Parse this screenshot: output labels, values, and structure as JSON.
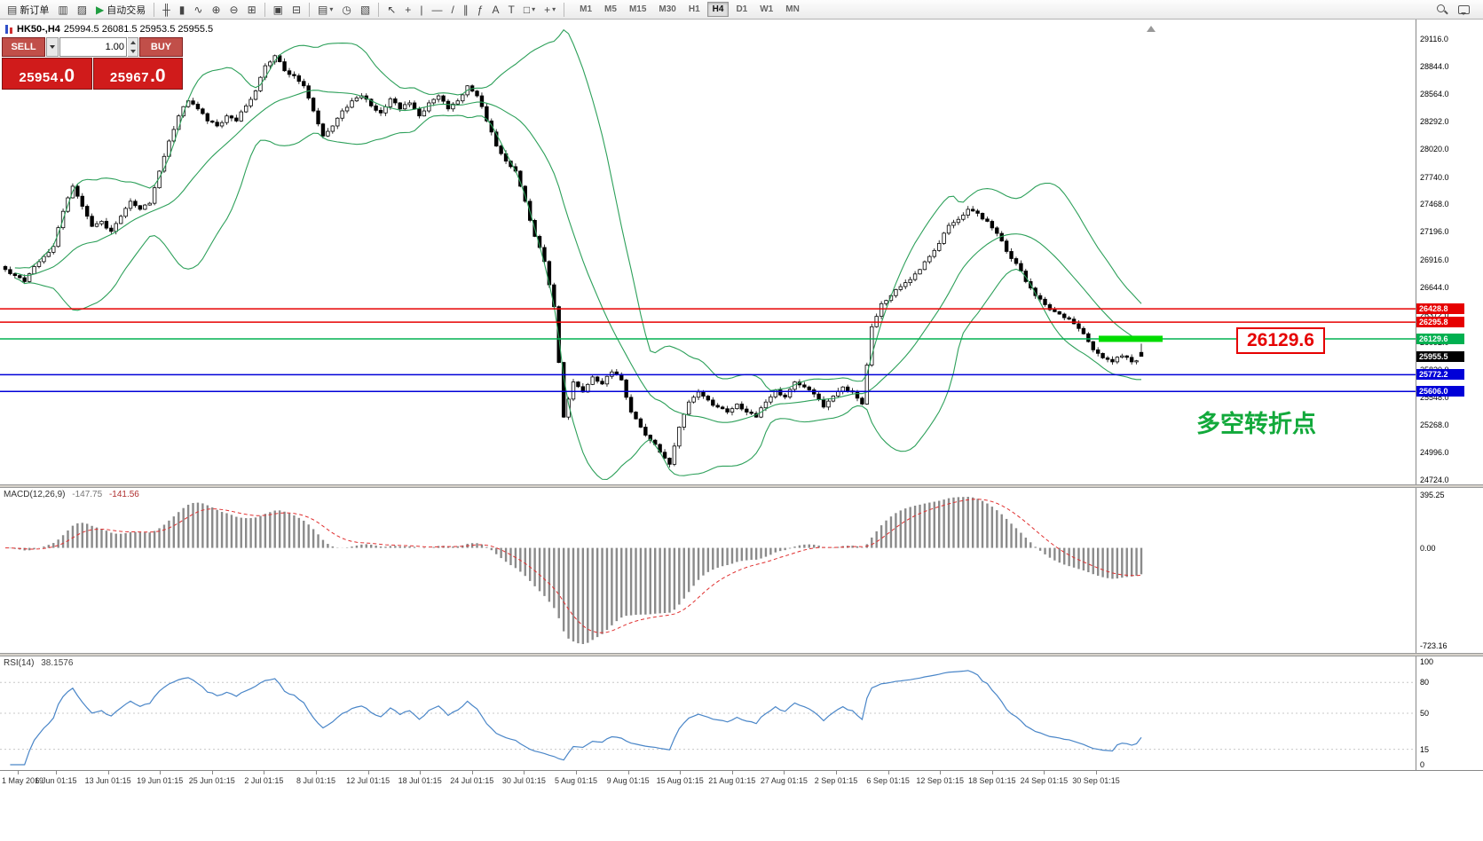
{
  "app": {
    "background": "#ffffff",
    "toolbar_bg": "#f0f0f0"
  },
  "toolbar": {
    "groups": [
      {
        "items": [
          {
            "name": "new-order-button",
            "icon": "▤",
            "label": "新订单"
          },
          {
            "name": "chart-window-button",
            "icon": "▥"
          },
          {
            "name": "profiles-button",
            "icon": "▨"
          },
          {
            "name": "auto-trading-button",
            "icon": "▶",
            "icon_color": "#1f9d40",
            "label": "自动交易"
          }
        ]
      },
      {
        "sep": true
      },
      {
        "items": [
          {
            "name": "ohlc-bars-button",
            "icon": "╫"
          },
          {
            "name": "candlestick-chart-button",
            "icon": "▮"
          },
          {
            "name": "line-chart-button",
            "icon": "∿"
          }
        ]
      },
      {
        "items": [
          {
            "name": "zoom-in-button",
            "icon": "⊕"
          },
          {
            "name": "zoom-out-button",
            "icon": "⊖"
          },
          {
            "name": "tile-windows-button",
            "icon": "⊞"
          }
        ]
      },
      {
        "sep": true
      },
      {
        "items": [
          {
            "name": "arrange-windows-button",
            "icon": "▣"
          },
          {
            "name": "cascade-windows-button",
            "icon": "⊟"
          }
        ]
      },
      {
        "sep": true
      },
      {
        "items": [
          {
            "name": "new-chart-button",
            "icon": "▤",
            "dropdown": true
          },
          {
            "name": "period-button",
            "icon": "◷"
          },
          {
            "name": "indicators-button",
            "icon": "▧"
          }
        ]
      },
      {
        "sep": true
      },
      {
        "items": [
          {
            "name": "cursor-tool-button",
            "icon": "↖"
          },
          {
            "name": "crosshair-tool-button",
            "icon": "+"
          },
          {
            "name": "vertical-line-tool-button",
            "icon": "|"
          },
          {
            "name": "horizontal-line-tool-button",
            "icon": "—"
          },
          {
            "name": "trendline-tool-button",
            "icon": "/"
          },
          {
            "name": "channel-tool-button",
            "icon": "∥"
          },
          {
            "name": "fibonacci-tool-button",
            "icon": "ƒ"
          },
          {
            "name": "text-tool-button",
            "icon": "A"
          },
          {
            "name": "label-tool-button",
            "icon": "T"
          },
          {
            "name": "shapes-tool-button",
            "icon": "□",
            "dropdown": true
          },
          {
            "name": "add-object-button",
            "icon": "+",
            "dropdown": true
          }
        ]
      },
      {
        "sep": true
      }
    ],
    "timeframes": [
      {
        "name": "tf-m1",
        "label": "M1"
      },
      {
        "name": "tf-m5",
        "label": "M5"
      },
      {
        "name": "tf-m15",
        "label": "M15"
      },
      {
        "name": "tf-m30",
        "label": "M30"
      },
      {
        "name": "tf-h1",
        "label": "H1"
      },
      {
        "name": "tf-h4",
        "label": "H4",
        "active": true
      },
      {
        "name": "tf-d1",
        "label": "D1"
      },
      {
        "name": "tf-w1",
        "label": "W1"
      },
      {
        "name": "tf-mn",
        "label": "MN"
      }
    ],
    "right_icons": [
      {
        "name": "search-icon"
      },
      {
        "name": "chat-icon"
      }
    ]
  },
  "symbol_header": {
    "title": "HK50-,H4",
    "ohlc": "25994.5 26081.5 25953.5 25955.5"
  },
  "trade_panel": {
    "sell_label": "SELL",
    "buy_label": "BUY",
    "volume": "1.00",
    "sell_price_main": "25954",
    "sell_price_frac": ".0",
    "buy_price_main": "25967",
    "buy_price_frac": ".0"
  },
  "price_axis": {
    "ticks": [
      "29116.0",
      "28844.0",
      "28564.0",
      "28292.0",
      "28020.0",
      "27740.0",
      "27468.0",
      "27196.0",
      "26916.0",
      "26644.0",
      "26372.0",
      "26092.0",
      "25820.0",
      "25548.0",
      "25268.0",
      "24996.0",
      "24724.0"
    ]
  },
  "levels": [
    {
      "name": "resistance-line-1",
      "price": 26428.8,
      "label": "26428.8",
      "color": "#e60000",
      "line": true
    },
    {
      "name": "resistance-line-2",
      "price": 26295.8,
      "label": "26295.8",
      "color": "#e60000",
      "line": true
    },
    {
      "name": "pivot-line",
      "price": 26129.6,
      "label": "26129.6",
      "color": "#00b050",
      "line": true,
      "highlight": true
    },
    {
      "name": "current-price",
      "price": 25955.5,
      "label": "25955.5",
      "color": "#000000",
      "line": false
    },
    {
      "name": "support-line-1",
      "price": 25772.2,
      "label": "25772.2",
      "color": "#0000d8",
      "line": true
    },
    {
      "name": "support-line-2",
      "price": 25606.0,
      "label": "25606.0",
      "color": "#0000d8",
      "line": true
    }
  ],
  "callout": {
    "text": "26129.6",
    "color": "#e60000"
  },
  "annotation": {
    "text": "多空转折点",
    "color": "#12a93b"
  },
  "macd": {
    "label": "MACD(12,26,9)",
    "value1": "-147.75",
    "value2": "-141.56",
    "axis_top": "395.25",
    "axis_zero": "0.00",
    "axis_bottom": "-723.16"
  },
  "rsi": {
    "label": "RSI(14)",
    "value": "38.1576",
    "axis": [
      "100",
      "80",
      "50",
      "15",
      "0"
    ],
    "levels": [
      80,
      50,
      15
    ]
  },
  "time_axis": {
    "labels": [
      "1 May 2019",
      "6 Jun 01:15",
      "13 Jun 01:15",
      "19 Jun 01:15",
      "25 Jun 01:15",
      "2 Jul 01:15",
      "8 Jul 01:15",
      "12 Jul 01:15",
      "18 Jul 01:15",
      "24 Jul 01:15",
      "30 Jul 01:15",
      "5 Aug 01:15",
      "9 Aug 01:15",
      "15 Aug 01:15",
      "21 Aug 01:15",
      "27 Aug 01:15",
      "2 Sep 01:15",
      "6 Sep 01:15",
      "12 Sep 01:15",
      "18 Sep 01:15",
      "24 Sep 01:15",
      "30 Sep 01:15"
    ]
  },
  "colors": {
    "sell_buy_button": "#c14f49",
    "price_box": "#d01b1b",
    "bollinger": "#2da05a",
    "candle_up": "#ffffff",
    "candle_down": "#000000",
    "candle_border": "#000000",
    "macd_histogram": "#8a8a8a",
    "macd_signal": "#e03030",
    "rsi_line": "#4a86c8",
    "highlight_segment": "#00dc00"
  },
  "chart_data": {
    "type": "candlestick",
    "symbol": "HK50",
    "timeframe": "H4",
    "ohlc_current": {
      "open": 25994.5,
      "high": 26081.5,
      "low": 25953.5,
      "close": 25955.5
    },
    "visible_price_range": [
      24724.0,
      29116.0
    ],
    "close_anchors": [
      26820,
      26760,
      26700,
      26850,
      26950,
      27050,
      27400,
      27650,
      27450,
      27250,
      27300,
      27200,
      27350,
      27500,
      27420,
      27480,
      27800,
      28100,
      28350,
      28500,
      28420,
      28300,
      28250,
      28350,
      28300,
      28450,
      28600,
      28850,
      28950,
      28800,
      28750,
      28650,
      28400,
      28150,
      28250,
      28400,
      28500,
      28550,
      28450,
      28380,
      28520,
      28420,
      28480,
      28350,
      28480,
      28550,
      28420,
      28500,
      28650,
      28550,
      28300,
      28050,
      27900,
      27800,
      27500,
      27150,
      26900,
      26450,
      25350,
      25700,
      25600,
      25750,
      25680,
      25800,
      25720,
      25400,
      25250,
      25120,
      25000,
      24880,
      25250,
      25500,
      25600,
      25520,
      25450,
      25400,
      25480,
      25400,
      25350,
      25500,
      25620,
      25550,
      25700,
      25650,
      25580,
      25450,
      25560,
      25650,
      25600,
      25480,
      26250,
      26480,
      26560,
      26650,
      26720,
      26820,
      26950,
      27080,
      27260,
      27320,
      27420,
      27380,
      27300,
      27180,
      27000,
      26880,
      26700,
      26560,
      26470,
      26400,
      26340,
      26280,
      26180,
      26020,
      25940,
      25900,
      25960,
      25900,
      25955.5
    ],
    "indicators": [
      {
        "type": "bollinger_bands",
        "period": 20,
        "deviation": 2
      },
      {
        "type": "macd",
        "fast": 12,
        "slow": 26,
        "signal": 9,
        "current_macd": -147.75,
        "current_signal": -141.56,
        "scale": [
          -723.16,
          395.25
        ]
      },
      {
        "type": "rsi",
        "period": 14,
        "current": 38.1576
      }
    ],
    "horizontal_levels": [
      26428.8,
      26295.8,
      26129.6,
      25772.2,
      25606.0
    ]
  }
}
